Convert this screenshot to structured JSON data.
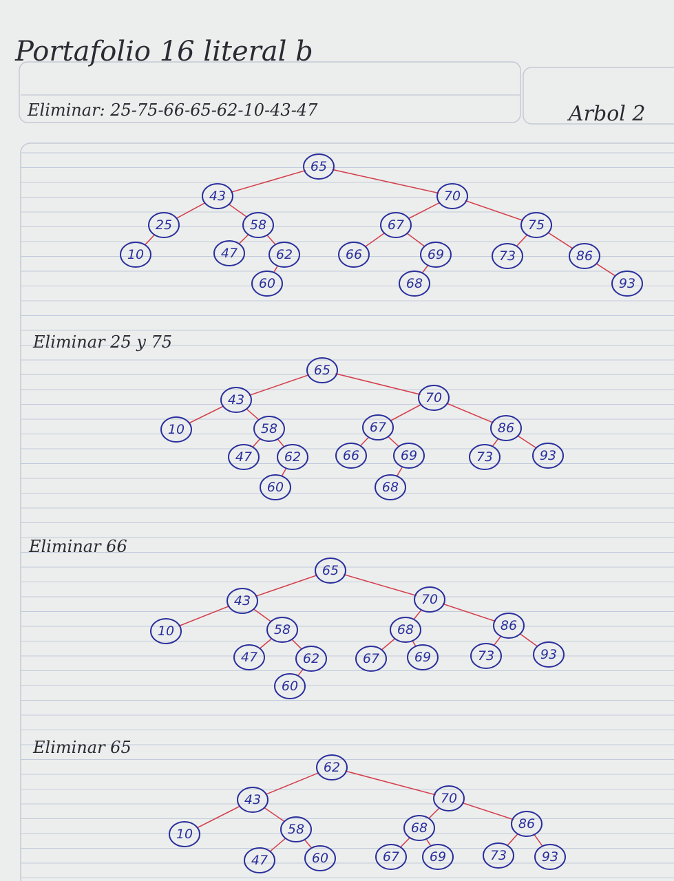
{
  "header": {
    "title": "Portafolio 16 literal b",
    "delete_list": "Eliminar: 25-75-66-65-62-10-43-47",
    "tree_label": "Arbol 2"
  },
  "colors": {
    "node": "#2a2f9c",
    "edge": "#d4424f",
    "ink": "#2b2b33",
    "rule": "#b9c3d6"
  },
  "trees": [
    {
      "heading": "",
      "nodes": [
        {
          "id": "n65",
          "v": "65",
          "c": null
        },
        {
          "id": "n43",
          "v": "43",
          "p": "n65"
        },
        {
          "id": "n70",
          "v": "70",
          "p": "n65"
        },
        {
          "id": "n25",
          "v": "25",
          "p": "n43"
        },
        {
          "id": "n58",
          "v": "58",
          "p": "n43"
        },
        {
          "id": "n10",
          "v": "10",
          "p": "n25"
        },
        {
          "id": "n47",
          "v": "47",
          "p": "n58"
        },
        {
          "id": "n62",
          "v": "62",
          "p": "n58"
        },
        {
          "id": "n60",
          "v": "60",
          "p": "n62"
        },
        {
          "id": "n67",
          "v": "67",
          "p": "n70"
        },
        {
          "id": "n75",
          "v": "75",
          "p": "n70"
        },
        {
          "id": "n66",
          "v": "66",
          "p": "n67"
        },
        {
          "id": "n69",
          "v": "69",
          "p": "n67"
        },
        {
          "id": "n68",
          "v": "68",
          "p": "n69"
        },
        {
          "id": "n73",
          "v": "73",
          "p": "n75"
        },
        {
          "id": "n86",
          "v": "86",
          "p": "n75"
        },
        {
          "id": "n93",
          "v": "93",
          "p": "n86"
        }
      ]
    },
    {
      "heading": "Eliminar 25 y 75",
      "nodes": [
        {
          "id": "n65",
          "v": "65"
        },
        {
          "id": "n43",
          "v": "43",
          "p": "n65"
        },
        {
          "id": "n70",
          "v": "70",
          "p": "n65"
        },
        {
          "id": "n10",
          "v": "10",
          "p": "n43"
        },
        {
          "id": "n58",
          "v": "58",
          "p": "n43"
        },
        {
          "id": "n47",
          "v": "47",
          "p": "n58"
        },
        {
          "id": "n62",
          "v": "62",
          "p": "n58"
        },
        {
          "id": "n60",
          "v": "60",
          "p": "n62"
        },
        {
          "id": "n67",
          "v": "67",
          "p": "n70"
        },
        {
          "id": "n86",
          "v": "86",
          "p": "n70"
        },
        {
          "id": "n66",
          "v": "66",
          "p": "n67"
        },
        {
          "id": "n69",
          "v": "69",
          "p": "n67"
        },
        {
          "id": "n68",
          "v": "68",
          "p": "n69"
        },
        {
          "id": "n73",
          "v": "73",
          "p": "n86"
        },
        {
          "id": "n93",
          "v": "93",
          "p": "n86"
        }
      ]
    },
    {
      "heading": "Eliminar 66",
      "nodes": [
        {
          "id": "n65",
          "v": "65"
        },
        {
          "id": "n43",
          "v": "43",
          "p": "n65"
        },
        {
          "id": "n70",
          "v": "70",
          "p": "n65"
        },
        {
          "id": "n10",
          "v": "10",
          "p": "n43"
        },
        {
          "id": "n58",
          "v": "58",
          "p": "n43"
        },
        {
          "id": "n47",
          "v": "47",
          "p": "n58"
        },
        {
          "id": "n62",
          "v": "62",
          "p": "n58"
        },
        {
          "id": "n60",
          "v": "60",
          "p": "n62"
        },
        {
          "id": "n68",
          "v": "68",
          "p": "n70"
        },
        {
          "id": "n86",
          "v": "86",
          "p": "n70"
        },
        {
          "id": "n67",
          "v": "67",
          "p": "n68"
        },
        {
          "id": "n69",
          "v": "69",
          "p": "n68"
        },
        {
          "id": "n73",
          "v": "73",
          "p": "n86"
        },
        {
          "id": "n93",
          "v": "93",
          "p": "n86"
        }
      ]
    },
    {
      "heading": "Eliminar 65",
      "nodes": [
        {
          "id": "n62",
          "v": "62"
        },
        {
          "id": "n43",
          "v": "43",
          "p": "n62"
        },
        {
          "id": "n70",
          "v": "70",
          "p": "n62"
        },
        {
          "id": "n10",
          "v": "10",
          "p": "n43"
        },
        {
          "id": "n58",
          "v": "58",
          "p": "n43"
        },
        {
          "id": "n47",
          "v": "47",
          "p": "n58"
        },
        {
          "id": "n60",
          "v": "60",
          "p": "n58"
        },
        {
          "id": "n68",
          "v": "68",
          "p": "n70"
        },
        {
          "id": "n86",
          "v": "86",
          "p": "n70"
        },
        {
          "id": "n67",
          "v": "67",
          "p": "n68"
        },
        {
          "id": "n69",
          "v": "69",
          "p": "n68"
        },
        {
          "id": "n73",
          "v": "73",
          "p": "n86"
        },
        {
          "id": "n93",
          "v": "93",
          "p": "n86"
        }
      ]
    }
  ]
}
